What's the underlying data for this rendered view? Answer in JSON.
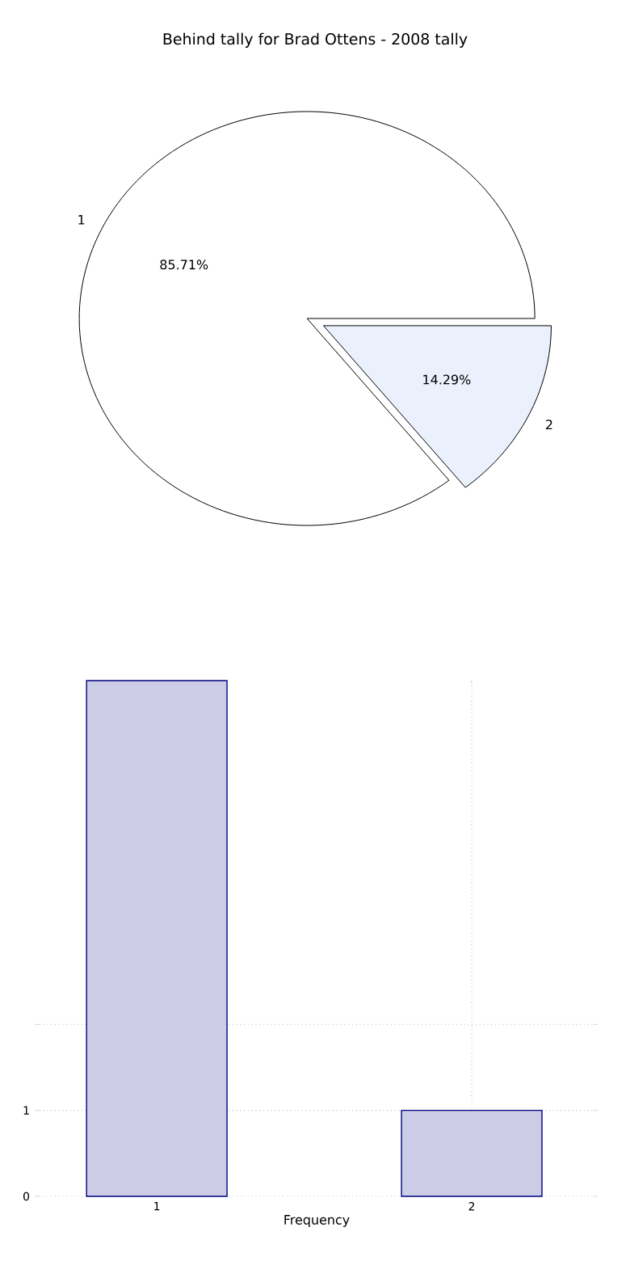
{
  "chart_data": [
    {
      "type": "pie",
      "title": "Behind tally for Brad Ottens - 2008 tally",
      "categories": [
        "1",
        "2"
      ],
      "values": [
        85.71,
        14.29
      ],
      "colors": [
        "#ffffff",
        "#eaf0fc"
      ],
      "value_labels": [
        "85.71%",
        "14.29%"
      ]
    },
    {
      "type": "bar",
      "xlabel": "Frequency",
      "categories": [
        "1",
        "2"
      ],
      "values": [
        6,
        1
      ],
      "color": "#cccce6",
      "ylim": [
        0,
        6
      ],
      "yticks": [
        0,
        1,
        {
          "value": 2,
          "label": null
        }
      ],
      "grid": true
    }
  ]
}
